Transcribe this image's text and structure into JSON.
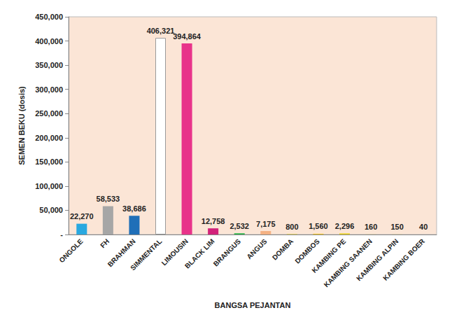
{
  "chart_data": {
    "type": "bar",
    "x_label": "BANGSA PEJANTAN",
    "y_label": "SEMEN BEKU (dosis)",
    "categories": [
      "ONGOLE",
      "FH",
      "BRAHMAN",
      "SIMMENTAL",
      "LIMOUSIN",
      "BLACK LIM",
      "BRANGUS",
      "ANGUS",
      "DOMBA",
      "DOMBOS",
      "KAMBING PE",
      "KAMBING SAANEN",
      "KAMBING ALPIN",
      "KAMBING BOER"
    ],
    "values": [
      22270,
      58533,
      38686,
      406321,
      394864,
      12758,
      2532,
      7175,
      800,
      1560,
      2296,
      160,
      150,
      40
    ],
    "value_labels": [
      "22,270",
      "58,533",
      "38,686",
      "406,321",
      "394,864",
      "12,758",
      "2,532",
      "7,175",
      "800",
      "1,560",
      "2,296",
      "160",
      "150",
      "40"
    ],
    "colors": [
      "#29a8e0",
      "#a6a6a6",
      "#1f6fb8",
      "#ffffff",
      "#e8338a",
      "#d1227a",
      "#2db34a",
      "#f4b183",
      "#e8d21d",
      "#f0c420",
      "#e8d21d",
      "#e8d21d",
      "#e8d21d",
      "#2e4a8c"
    ],
    "ylim": [
      0,
      450000
    ],
    "yticks": [
      {
        "value": 0,
        "label": "-"
      },
      {
        "value": 50000,
        "label": "50,000"
      },
      {
        "value": 100000,
        "label": "100,000"
      },
      {
        "value": 150000,
        "label": "150,000"
      },
      {
        "value": 200000,
        "label": "200,000"
      },
      {
        "value": 250000,
        "label": "250,000"
      },
      {
        "value": 300000,
        "label": "300,000"
      },
      {
        "value": 350000,
        "label": "350,000"
      },
      {
        "value": 400000,
        "label": "400,000"
      },
      {
        "value": 450000,
        "label": "450,000"
      }
    ],
    "data_labels": true,
    "grid": false
  }
}
